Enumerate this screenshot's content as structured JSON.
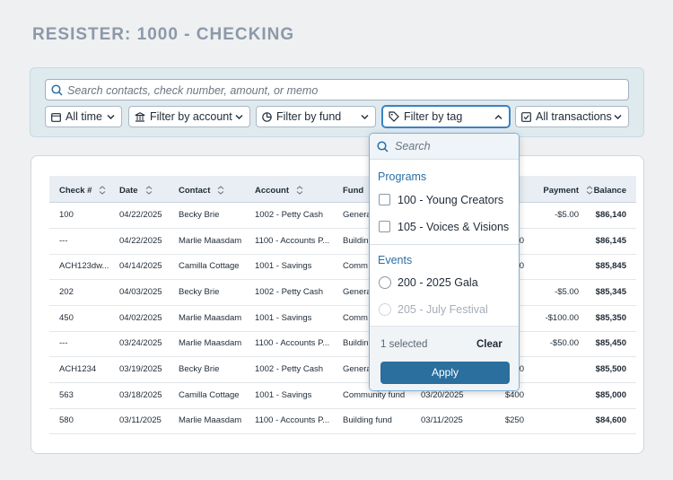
{
  "header": {
    "title": "RESISTER: 1000 - CHECKING"
  },
  "filters": {
    "search_placeholder": "Search contacts, check number, amount, or memo",
    "buttons": [
      "All time",
      "Filter by account",
      "Filter by fund",
      "Filter by tag",
      "All transactions"
    ]
  },
  "table": {
    "columns": [
      "Check #",
      "Date",
      "Contact",
      "Account",
      "Fund",
      null,
      null,
      "Payment",
      "Balance"
    ],
    "rows": [
      [
        "100",
        "04/22/2025",
        "Becky Brie",
        "1002 - Petty Cash",
        "Genera",
        null,
        null,
        "-$5.00",
        "$86,140"
      ],
      [
        "---",
        "04/22/2025",
        "Marlie Maasdam",
        "1100 - Accounts P...",
        "Buildin",
        null,
        "0",
        null,
        "$86,145"
      ],
      [
        "ACH123dw...",
        "04/14/2025",
        "Camilla Cottage",
        "1001 - Savings",
        "Comm",
        null,
        "0",
        null,
        "$85,845"
      ],
      [
        "202",
        "04/03/2025",
        "Becky Brie",
        "1002 - Petty Cash",
        "Genera",
        null,
        null,
        "-$5.00",
        "$85,345"
      ],
      [
        "450",
        "04/02/2025",
        "Marlie Maasdam",
        "1001 - Savings",
        "Comm",
        null,
        null,
        "-$100.00",
        "$85,350"
      ],
      [
        "---",
        "03/24/2025",
        "Marlie Maasdam",
        "1100 - Accounts P...",
        "Buildin",
        null,
        null,
        "-$50.00",
        "$85,450"
      ],
      [
        "ACH1234",
        "03/19/2025",
        "Becky Brie",
        "1002 - Petty Cash",
        "Genera",
        null,
        "0",
        null,
        "$85,500"
      ],
      [
        "563",
        "03/18/2025",
        "Camilla Cottage",
        "1001 - Savings",
        "Community fund",
        "03/20/2025",
        "$400",
        null,
        "$85,000"
      ],
      [
        "580",
        "03/11/2025",
        "Marlie Maasdam",
        "1100 - Accounts P...",
        "Building fund",
        "03/11/2025",
        "$250",
        null,
        "$84,600"
      ]
    ]
  },
  "tag_menu": {
    "search_placeholder": "Search",
    "groups": [
      {
        "label": "Programs",
        "options": [
          "100 - Young Creators",
          "105 - Voices & Visions"
        ]
      },
      {
        "label": "Events",
        "options": [
          "200 - 2025 Gala",
          "205 - July Festival"
        ]
      }
    ],
    "selected_count": "1 selected",
    "clear": "Clear",
    "apply": "Apply"
  }
}
